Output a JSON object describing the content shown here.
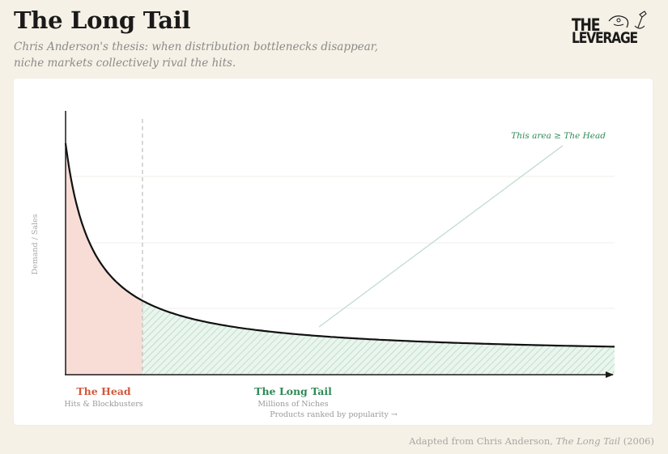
{
  "header": {
    "title": "The Long Tail",
    "subtitle_line1": "Chris Anderson's thesis: when distribution bottlenecks disappear,",
    "subtitle_line2": "niche markets collectively rival the hits."
  },
  "logo": {
    "line1": "THE",
    "line2": "LEVERAGE"
  },
  "footer": {
    "prefix": "Adapted from Chris Anderson, ",
    "book": "The Long Tail",
    "suffix": " (2006)"
  },
  "colors": {
    "head_fill": "#f7ddd6",
    "head_label": "#d2583c",
    "tail_label": "#2f8a55",
    "tail_hatch": "#9ecfb2",
    "curve": "#111111"
  },
  "chart_data": {
    "type": "area",
    "ylabel": "Demand / Sales",
    "xlabel": "Products ranked by popularity →",
    "head": {
      "label": "The Head",
      "sublabel": "Hits & Blockbusters"
    },
    "tail": {
      "label": "The Long Tail",
      "sublabel": "Millions of Niches"
    },
    "annotation": "This area ≥ The Head",
    "curve": "power-law decay (demand falls steeply then flattens)",
    "head_fraction_of_axis": 0.14,
    "grid": "horizontal, faint",
    "axes_ticks": "none"
  }
}
